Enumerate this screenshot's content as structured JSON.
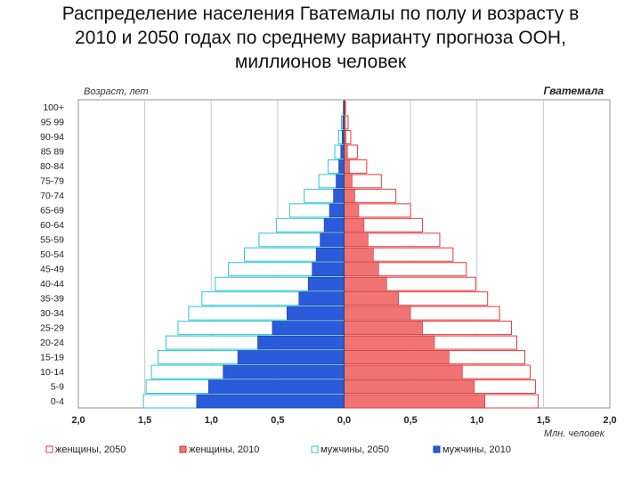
{
  "slide": {
    "title_line1": "Распределение населения Гватемалы по полу и возрасту в",
    "title_line2": "2010 и 2050 годах по среднему варианту прогноза ООН,",
    "title_line3": "миллионов человек"
  },
  "chart_data": {
    "type": "bar",
    "orientation": "horizontal-population-pyramid",
    "title": "Гватемала",
    "ylabel": "Возраст, лет",
    "xlabel": "Млн. человек",
    "xlim": [
      -2.0,
      2.0
    ],
    "xticks": [
      -2.0,
      -1.5,
      -1.0,
      -0.5,
      0.0,
      0.5,
      1.0,
      1.5,
      2.0
    ],
    "xtick_labels": [
      "2,0",
      "1,5",
      "1,0",
      "0,5",
      "0,0",
      "0,5",
      "1,0",
      "1,5",
      "2,0"
    ],
    "grid": true,
    "legend_position": "bottom",
    "categories": [
      "100+",
      "95-99",
      "90-94",
      "85-89",
      "80-84",
      "75-79",
      "70-74",
      "65-69",
      "60-64",
      "55-59",
      "50-54",
      "45-49",
      "40-44",
      "35-39",
      "30-34",
      "25-29",
      "20-24",
      "15-19",
      "10-14",
      "5-9",
      "0-4"
    ],
    "category_labels": [
      "100+",
      "95 99",
      "90-94",
      "85 89",
      "80-84",
      "75-79",
      "70-74",
      "65-69",
      "60-64",
      "55-59",
      "50-54",
      "45-49",
      "40-44",
      "35-39",
      "30-34",
      "25-29",
      "20-24",
      "15-19",
      "10-14",
      "5-9",
      "0-4"
    ],
    "series": [
      {
        "name": "женщины, 2050",
        "side": "right",
        "style": "outline",
        "color": "#e8373b",
        "values": [
          0.01,
          0.03,
          0.05,
          0.1,
          0.17,
          0.28,
          0.39,
          0.5,
          0.59,
          0.72,
          0.82,
          0.92,
          0.99,
          1.08,
          1.17,
          1.26,
          1.3,
          1.36,
          1.4,
          1.44,
          1.46
        ]
      },
      {
        "name": "женщины, 2010",
        "side": "right",
        "style": "filled",
        "color": "#f07474",
        "values": [
          0.005,
          0.01,
          0.015,
          0.025,
          0.04,
          0.06,
          0.08,
          0.11,
          0.15,
          0.18,
          0.22,
          0.26,
          0.32,
          0.41,
          0.5,
          0.59,
          0.68,
          0.79,
          0.89,
          0.98,
          1.06
        ]
      },
      {
        "name": "мужчины, 2050",
        "side": "left",
        "style": "outline",
        "color": "#2ec4d2",
        "values": [
          0.005,
          0.02,
          0.04,
          0.07,
          0.12,
          0.19,
          0.3,
          0.41,
          0.51,
          0.64,
          0.75,
          0.87,
          0.97,
          1.07,
          1.17,
          1.25,
          1.34,
          1.4,
          1.45,
          1.49,
          1.51
        ]
      },
      {
        "name": "мужчины, 2010",
        "side": "left",
        "style": "filled",
        "color": "#2a5bdb",
        "values": [
          0.005,
          0.01,
          0.015,
          0.025,
          0.04,
          0.06,
          0.08,
          0.11,
          0.15,
          0.18,
          0.21,
          0.24,
          0.27,
          0.34,
          0.43,
          0.54,
          0.65,
          0.8,
          0.91,
          1.02,
          1.11
        ]
      }
    ]
  }
}
